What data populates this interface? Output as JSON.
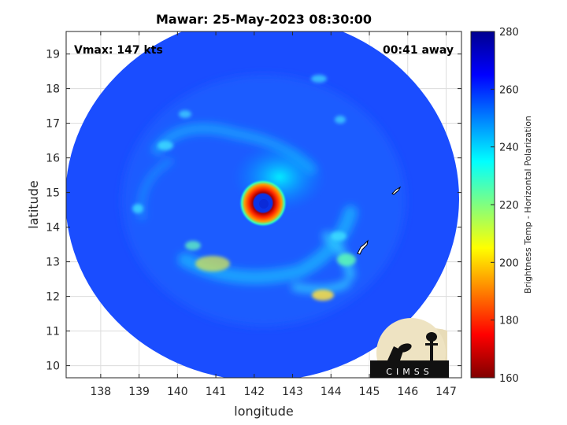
{
  "chart_data": {
    "type": "heatmap",
    "title": "Mawar: 25-May-2023 08:30:00",
    "xlabel": "longitude",
    "ylabel": "latitude",
    "xlim": [
      137.1,
      147.4
    ],
    "ylim": [
      9.65,
      19.65
    ],
    "xticks": [
      138,
      139,
      140,
      141,
      142,
      143,
      144,
      145,
      146,
      147
    ],
    "yticks": [
      10,
      11,
      12,
      13,
      14,
      15,
      16,
      17,
      18,
      19
    ],
    "grid": true,
    "annotations": {
      "left": "Vmax: 147 kts",
      "right": "00:41 away"
    },
    "storm_center": {
      "lon": 142.25,
      "lat": 14.7
    },
    "colorbar": {
      "label": "Brightness Temp - Horizontal Polarization",
      "range": [
        160,
        280
      ],
      "ticks": [
        160,
        180,
        200,
        220,
        240,
        260,
        280
      ],
      "colormap": [
        "#800000",
        "#ff0000",
        "#ff8000",
        "#ffff00",
        "#80ff80",
        "#00ffff",
        "#0080ff",
        "#0000ff",
        "#00008f"
      ]
    }
  },
  "logo": {
    "text": "CIMSS"
  }
}
